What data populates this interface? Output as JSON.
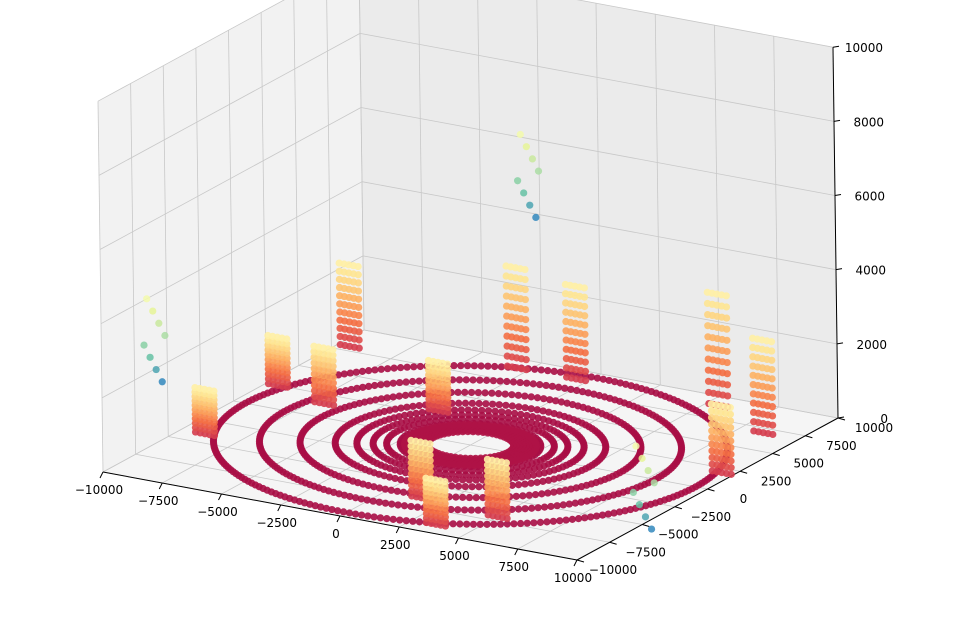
{
  "chart_data": {
    "type": "scatter",
    "projection": "3d",
    "title": "",
    "xlabel": "",
    "ylabel": "",
    "zlabel": "",
    "xlim": [
      -10000,
      10000
    ],
    "ylim": [
      -10000,
      10000
    ],
    "zlim": [
      0,
      10000
    ],
    "grid": true,
    "legend": "none",
    "colormap": "Spectral",
    "x_ticks": [
      "−10000",
      "−7500",
      "−5000",
      "−2500",
      "0",
      "2500",
      "5000",
      "7500",
      "10000"
    ],
    "y_ticks": [
      "−10000",
      "−7500",
      "−5000",
      "−2500",
      "0",
      "2500",
      "5000",
      "7500",
      "10000"
    ],
    "z_ticks": [
      "0",
      "2000",
      "4000",
      "6000",
      "8000",
      "10000"
    ],
    "rings": [
      {
        "radius": 9500,
        "z": 0
      },
      {
        "radius": 7800,
        "z": 0
      },
      {
        "radius": 6300,
        "z": 0
      },
      {
        "radius": 5000,
        "z": 0
      },
      {
        "radius": 4200,
        "z": 0
      },
      {
        "radius": 3600,
        "z": 0
      },
      {
        "radius": 3100,
        "z": 0
      },
      {
        "radius": 2600,
        "z": 0
      },
      {
        "radius": 2100,
        "z": 0
      }
    ],
    "stacks": [
      {
        "x": -9500,
        "y": 8000,
        "z_top": 2200
      },
      {
        "x": -9500,
        "y": 2500,
        "z_top": 1300
      },
      {
        "x": -7000,
        "y": 1500,
        "z_top": 1500
      },
      {
        "x": -3000,
        "y": 9000,
        "z_top": 2700
      },
      {
        "x": -500,
        "y": 9000,
        "z_top": 2500
      },
      {
        "x": 5500,
        "y": 9000,
        "z_top": 3000
      },
      {
        "x": 8500,
        "y": 7000,
        "z_top": 2500
      },
      {
        "x": 9500,
        "y": 2000,
        "z_top": 1800
      },
      {
        "x": 1500,
        "y": -6500,
        "z_top": 1500
      },
      {
        "x": 5000,
        "y": -7000,
        "z_top": 1500
      },
      {
        "x": 3500,
        "y": -9000,
        "z_top": 1200
      },
      {
        "x": -9000,
        "y": -4000,
        "z_top": 1200
      },
      {
        "x": -3000,
        "y": 3000,
        "z_top": 1300
      }
    ],
    "clusters": [
      {
        "x": -3000,
        "y": 9500,
        "z": 6200,
        "level": "high"
      },
      {
        "x": -10000,
        "y": -6500,
        "z": 4000,
        "level": "high"
      },
      {
        "x": 7000,
        "y": 0,
        "z": 800,
        "level": "high"
      }
    ]
  }
}
